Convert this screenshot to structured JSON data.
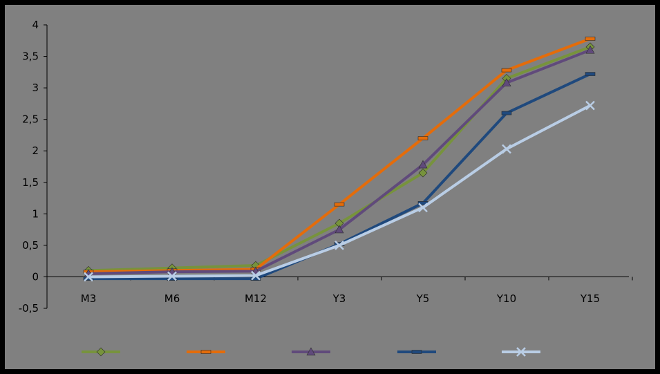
{
  "chart_data": {
    "type": "line",
    "title": "",
    "xlabel": "",
    "ylabel": "",
    "categories": [
      "M3",
      "M6",
      "M12",
      "Y3",
      "Y5",
      "Y10",
      "Y15"
    ],
    "y_tick_labels": [
      "4",
      "3,5",
      "3",
      "2,5",
      "2",
      "1,5",
      "1",
      "0,5",
      "0",
      "-0,5"
    ],
    "ylim": [
      -0.5,
      4
    ],
    "grid": false,
    "legend_position": "bottom",
    "background_color": "#808080",
    "series": [
      {
        "name": "",
        "color": "#77933C",
        "marker": "diamond",
        "values": [
          0.1,
          0.14,
          0.18,
          0.85,
          1.65,
          3.15,
          3.65
        ]
      },
      {
        "name": "",
        "color": "#E46C0A",
        "marker": "dash",
        "values": [
          0.08,
          0.1,
          0.12,
          1.15,
          2.2,
          3.28,
          3.78
        ]
      },
      {
        "name": "",
        "color": "#604A7B",
        "marker": "triangle",
        "values": [
          0.05,
          0.08,
          0.09,
          0.75,
          1.78,
          3.08,
          3.6
        ]
      },
      {
        "name": "",
        "color": "#1F497D",
        "marker": "dash",
        "values": [
          -0.03,
          -0.03,
          -0.03,
          0.52,
          1.17,
          2.6,
          3.22
        ]
      },
      {
        "name": "",
        "color": "#B9CDE5",
        "marker": "x",
        "values": [
          0.0,
          0.01,
          0.02,
          0.5,
          1.1,
          2.03,
          2.72
        ]
      }
    ]
  }
}
